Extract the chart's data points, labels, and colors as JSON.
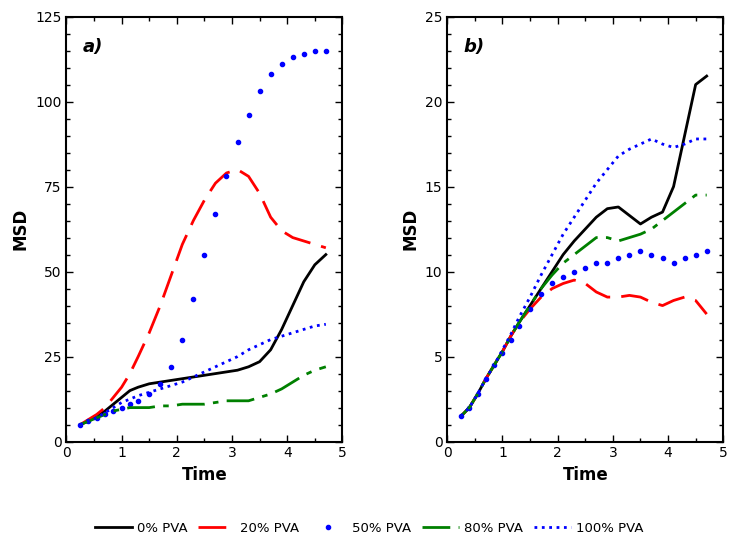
{
  "title_a": "a)",
  "title_b": "b)",
  "xlabel": "Time",
  "ylabel": "MSD",
  "xlim_a": [
    0,
    5
  ],
  "ylim_a": [
    0,
    125
  ],
  "xlim_b": [
    0,
    5
  ],
  "ylim_b": [
    0,
    25
  ],
  "yticks_a": [
    0,
    25,
    50,
    75,
    100,
    125
  ],
  "yticks_b": [
    0,
    5,
    10,
    15,
    20,
    25
  ],
  "xticks": [
    0,
    1,
    2,
    3,
    4,
    5
  ],
  "legend_labels": [
    "0% PVA",
    "20% PVA",
    "50% PVA",
    "80% PVA",
    "100% PVA"
  ],
  "t_a": [
    0.25,
    0.4,
    0.55,
    0.7,
    0.85,
    1.0,
    1.15,
    1.3,
    1.5,
    1.7,
    1.9,
    2.1,
    2.3,
    2.5,
    2.7,
    2.9,
    3.1,
    3.3,
    3.5,
    3.7,
    3.9,
    4.1,
    4.3,
    4.5,
    4.7
  ],
  "a_0pva": [
    5,
    6,
    7.5,
    9,
    11,
    13,
    15,
    16,
    17,
    17.5,
    18,
    18.5,
    19,
    19.5,
    20,
    20.5,
    21,
    22,
    23.5,
    27,
    33,
    40,
    47,
    52,
    55
  ],
  "a_20pva": [
    5,
    6.5,
    8,
    10,
    13,
    16,
    20,
    25,
    32,
    40,
    49,
    58,
    65,
    71,
    76,
    79,
    80,
    78,
    73,
    66,
    62,
    60,
    59,
    58,
    57
  ],
  "a_50pva": [
    5,
    6,
    7,
    8,
    9,
    10,
    11,
    12,
    14,
    17,
    22,
    30,
    42,
    55,
    67,
    78,
    88,
    96,
    103,
    108,
    111,
    113,
    114,
    115,
    115
  ],
  "a_80pva": [
    5,
    6,
    7,
    8,
    9,
    9.5,
    10,
    10,
    10,
    10.5,
    10.5,
    11,
    11,
    11,
    11.5,
    12,
    12,
    12,
    13,
    14,
    15.5,
    17.5,
    19.5,
    21,
    22
  ],
  "a_100pva": [
    5,
    6,
    7,
    8.5,
    10,
    11.5,
    12.5,
    13.5,
    14.5,
    15.5,
    16.5,
    17.5,
    19,
    20.5,
    22,
    23.5,
    25,
    27,
    28.5,
    30,
    31,
    32,
    33,
    34,
    34.5
  ],
  "t_b": [
    0.25,
    0.4,
    0.55,
    0.7,
    0.85,
    1.0,
    1.15,
    1.3,
    1.5,
    1.7,
    1.9,
    2.1,
    2.3,
    2.5,
    2.7,
    2.9,
    3.1,
    3.3,
    3.5,
    3.7,
    3.9,
    4.1,
    4.3,
    4.5,
    4.7
  ],
  "b_0pva": [
    1.5,
    2.0,
    2.8,
    3.7,
    4.5,
    5.3,
    6.2,
    7.0,
    8.0,
    9.0,
    10.0,
    11.0,
    11.8,
    12.5,
    13.2,
    13.7,
    13.8,
    13.3,
    12.8,
    13.2,
    13.5,
    15.0,
    18.0,
    21.0,
    21.5
  ],
  "b_20pva": [
    1.5,
    2.0,
    2.8,
    3.7,
    4.5,
    5.3,
    6.2,
    7.0,
    7.8,
    8.5,
    9.0,
    9.3,
    9.5,
    9.3,
    8.8,
    8.5,
    8.5,
    8.6,
    8.5,
    8.2,
    8.0,
    8.3,
    8.5,
    8.3,
    7.5
  ],
  "b_50pva": [
    1.5,
    2.0,
    2.8,
    3.7,
    4.5,
    5.2,
    6.0,
    6.8,
    7.8,
    8.7,
    9.3,
    9.7,
    10.0,
    10.2,
    10.5,
    10.5,
    10.8,
    11.0,
    11.2,
    11.0,
    10.8,
    10.5,
    10.8,
    11.0,
    11.2
  ],
  "b_80pva": [
    1.5,
    2.0,
    2.8,
    3.7,
    4.5,
    5.3,
    6.2,
    7.0,
    8.0,
    9.0,
    9.8,
    10.5,
    11.0,
    11.5,
    12.0,
    12.0,
    11.8,
    12.0,
    12.2,
    12.5,
    13.0,
    13.5,
    14.0,
    14.5,
    14.5
  ],
  "b_100pva": [
    1.5,
    2.0,
    2.8,
    3.7,
    4.5,
    5.4,
    6.3,
    7.3,
    8.5,
    9.8,
    11.0,
    12.2,
    13.2,
    14.2,
    15.2,
    16.0,
    16.8,
    17.2,
    17.5,
    17.8,
    17.5,
    17.3,
    17.5,
    17.8,
    17.8
  ]
}
